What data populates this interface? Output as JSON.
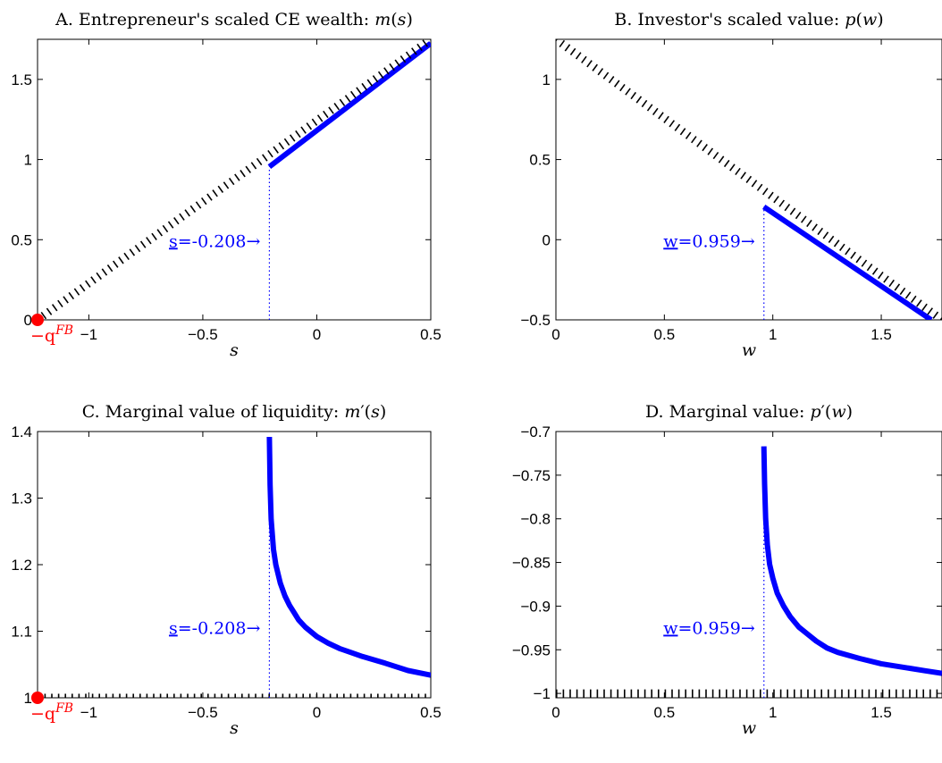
{
  "chart_data": [
    {
      "type": "line",
      "panel": "A",
      "title": "A. Entrepreneur's scaled CE wealth: m(s)",
      "title_parts": [
        "A. Entrepreneur's scaled CE wealth: ",
        "m",
        "(",
        "s",
        ")"
      ],
      "xlabel": "s",
      "xlim": [
        -1.225,
        0.5
      ],
      "ylim": [
        0,
        1.75
      ],
      "xticks": [
        -1,
        -0.5,
        0,
        0.5
      ],
      "xtick_labels": [
        "−1",
        "−0.5",
        "0",
        "0.5"
      ],
      "yticks": [
        0,
        0.5,
        1,
        1.5
      ],
      "ytick_labels": [
        "0",
        "0.5",
        "1",
        "1.5"
      ],
      "grid": false,
      "series": [
        {
          "style": "solid",
          "color": "#0000ff",
          "x": [
            -0.208,
            0.5
          ],
          "y": [
            0.955,
            1.725
          ]
        },
        {
          "style": "dotted",
          "color": "#000000",
          "x": [
            -1.225,
            0.5
          ],
          "y": [
            0,
            1.75
          ]
        }
      ],
      "boundary": {
        "x": -0.208,
        "label_base": "s",
        "label_value": "=-0.208→"
      },
      "origin_marker": {
        "x": -1.225,
        "y": 0,
        "color": "#ff0000",
        "label_base": "−q",
        "label_sup": "FB"
      }
    },
    {
      "type": "line",
      "panel": "B",
      "title": "B. Investor's scaled value: p(w)",
      "title_parts": [
        "B. Investor's scaled value: ",
        "p",
        "(",
        "w",
        ")"
      ],
      "xlabel": "w",
      "xlim": [
        0,
        1.78
      ],
      "ylim": [
        -0.5,
        1.25
      ],
      "xticks": [
        0,
        0.5,
        1,
        1.5
      ],
      "xtick_labels": [
        "0",
        "0.5",
        "1",
        "1.5"
      ],
      "yticks": [
        -0.5,
        0,
        0.5,
        1
      ],
      "ytick_labels": [
        "−0.5",
        "0",
        "0.5",
        "1"
      ],
      "grid": false,
      "series": [
        {
          "style": "solid",
          "color": "#0000ff",
          "x": [
            0.959,
            1.73
          ],
          "y": [
            0.205,
            -0.5
          ]
        },
        {
          "style": "dotted",
          "color": "#000000",
          "x": [
            0,
            1.78
          ],
          "y": [
            1.25,
            -0.5
          ]
        }
      ],
      "boundary": {
        "x": 0.959,
        "label_base": "w",
        "label_value": "=0.959→"
      }
    },
    {
      "type": "line",
      "panel": "C",
      "title": "C. Marginal value of liquidity: m′(s)",
      "title_parts": [
        "C. Marginal value of liquidity: ",
        "m",
        "′(",
        "s",
        ")"
      ],
      "xlabel": "s",
      "xlim": [
        -1.225,
        0.5
      ],
      "ylim": [
        1,
        1.4
      ],
      "xticks": [
        -1,
        -0.5,
        0,
        0.5
      ],
      "xtick_labels": [
        "−1",
        "−0.5",
        "0",
        "0.5"
      ],
      "yticks": [
        1,
        1.1,
        1.2,
        1.3,
        1.4
      ],
      "ytick_labels": [
        "1",
        "1.1",
        "1.2",
        "1.3",
        "1.4"
      ],
      "grid": false,
      "series": [
        {
          "style": "solid",
          "color": "#0000ff",
          "x": [
            -0.208,
            -0.205,
            -0.2,
            -0.19,
            -0.18,
            -0.16,
            -0.14,
            -0.12,
            -0.1,
            -0.08,
            -0.05,
            0,
            0.05,
            0.1,
            0.15,
            0.2,
            0.3,
            0.4,
            0.5
          ],
          "y": [
            1.392,
            1.32,
            1.268,
            1.223,
            1.2,
            1.172,
            1.153,
            1.139,
            1.128,
            1.117,
            1.106,
            1.092,
            1.082,
            1.074,
            1.068,
            1.062,
            1.052,
            1.041,
            1.034
          ]
        },
        {
          "style": "dotted",
          "color": "#000000",
          "x": [
            -1.225,
            0.5
          ],
          "y": [
            1,
            1
          ]
        }
      ],
      "boundary": {
        "x": -0.208,
        "label_base": "s",
        "label_value": "=-0.208→"
      },
      "origin_marker": {
        "x": -1.225,
        "y": 1,
        "color": "#ff0000",
        "label_base": "−q",
        "label_sup": "FB"
      }
    },
    {
      "type": "line",
      "panel": "D",
      "title": "D. Marginal value: p′(w)",
      "title_parts": [
        "D. Marginal value: ",
        "p",
        "′(",
        "w",
        ")"
      ],
      "xlabel": "w",
      "xlim": [
        0,
        1.78
      ],
      "ylim": [
        -1.005,
        -0.7
      ],
      "xticks": [
        0,
        0.5,
        1,
        1.5
      ],
      "xtick_labels": [
        "0",
        "0.5",
        "1",
        "1.5"
      ],
      "yticks": [
        -1,
        -0.95,
        -0.9,
        -0.85,
        -0.8,
        -0.75,
        -0.7
      ],
      "ytick_labels": [
        "−1",
        "−0.95",
        "−0.9",
        "−0.85",
        "−0.8",
        "−0.75",
        "−0.7"
      ],
      "grid": false,
      "series": [
        {
          "style": "solid",
          "color": "#0000ff",
          "x": [
            0.959,
            0.962,
            0.967,
            0.975,
            0.985,
            1.0,
            1.02,
            1.05,
            1.08,
            1.12,
            1.16,
            1.2,
            1.25,
            1.3,
            1.4,
            1.5,
            1.6,
            1.7,
            1.78
          ],
          "y": [
            -0.717,
            -0.76,
            -0.8,
            -0.83,
            -0.852,
            -0.868,
            -0.885,
            -0.9,
            -0.912,
            -0.924,
            -0.932,
            -0.94,
            -0.948,
            -0.953,
            -0.96,
            -0.966,
            -0.97,
            -0.974,
            -0.977
          ]
        },
        {
          "style": "dotted",
          "color": "#000000",
          "x": [
            0,
            1.78
          ],
          "y": [
            -1,
            -1
          ]
        }
      ],
      "boundary": {
        "x": 0.959,
        "label_base": "w",
        "label_value": "=0.959→"
      }
    }
  ]
}
